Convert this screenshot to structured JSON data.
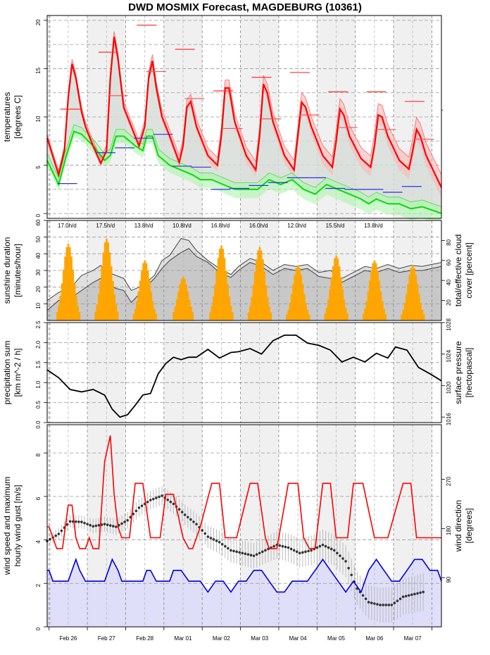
{
  "title": "DWD MOSMIX Forecast, MAGDEBURG (10361)",
  "chart_data": [
    {
      "type": "line",
      "panel": "temperature",
      "ylabel": [
        "temperatures",
        "[degrees C]"
      ],
      "ylim": [
        -0.5,
        20.5
      ],
      "yticks": [
        0,
        5,
        10,
        15,
        20
      ],
      "grid": true,
      "x_range_days": [
        0,
        10.3
      ],
      "x_tick_labels": [
        "Feb 26",
        "Feb 27",
        "Feb 28",
        "Mar 01",
        "Mar 02",
        "Mar 03",
        "Mar 04",
        "Mar 05",
        "Mar 06",
        "Mar 07"
      ],
      "series": [
        {
          "name": "temperature",
          "color": "#ff0000",
          "x": [
            0,
            0.3,
            0.45,
            0.55,
            0.65,
            0.75,
            0.9,
            1.0,
            1.2,
            1.4,
            1.55,
            1.65,
            1.75,
            1.85,
            2.0,
            2.2,
            2.4,
            2.55,
            2.65,
            2.75,
            2.85,
            3.0,
            3.2,
            3.45,
            3.55,
            3.65,
            3.75,
            3.9,
            4.2,
            4.45,
            4.55,
            4.65,
            4.75,
            4.9,
            5.2,
            5.45,
            5.55,
            5.65,
            5.75,
            5.9,
            6.2,
            6.45,
            6.55,
            6.65,
            6.75,
            6.9,
            7.2,
            7.45,
            7.55,
            7.65,
            7.75,
            7.9,
            8.2,
            8.45,
            8.55,
            8.65,
            8.75,
            8.9,
            9.2,
            9.45,
            9.55,
            9.65,
            9.75,
            9.9,
            10.3
          ],
          "values": [
            7.8,
            4.0,
            6.5,
            12,
            15.5,
            14,
            10.5,
            9,
            7,
            5.2,
            6.5,
            14,
            18.3,
            16,
            11,
            9,
            7,
            9,
            14,
            15.8,
            13,
            10,
            8,
            5.3,
            7,
            11,
            11.6,
            9,
            6,
            5,
            8,
            13,
            13,
            9.5,
            6,
            4.5,
            8,
            13.4,
            12.5,
            9.5,
            6,
            4.5,
            8,
            11.5,
            11,
            9,
            6,
            4.8,
            7.5,
            10.8,
            10.2,
            8,
            5.7,
            4.8,
            7,
            10.2,
            10,
            8,
            5.5,
            4.6,
            6.5,
            8.7,
            8,
            6,
            2.7
          ]
        },
        {
          "name": "dewpoint",
          "color": "#00e000",
          "x": [
            0,
            0.3,
            0.5,
            0.7,
            0.9,
            1.2,
            1.5,
            1.65,
            1.8,
            2.0,
            2.3,
            2.5,
            2.6,
            2.75,
            2.9,
            3.2,
            3.5,
            3.8,
            4.0,
            4.3,
            4.6,
            4.9,
            5.2,
            5.5,
            5.8,
            6.1,
            6.4,
            6.7,
            7.0,
            7.3,
            7.6,
            7.9,
            8.2,
            8.4,
            8.6,
            8.9,
            9.2,
            9.5,
            9.8,
            10.3
          ],
          "values": [
            5.5,
            3.0,
            6,
            8.5,
            8.2,
            7,
            5.5,
            6,
            8,
            8,
            7,
            6.5,
            8,
            8,
            6,
            5,
            4.5,
            4,
            3.5,
            3.5,
            3,
            2.5,
            2.5,
            2.5,
            3.5,
            3,
            3.5,
            2.5,
            2,
            3,
            2.5,
            2,
            1.5,
            1,
            1.5,
            1,
            1,
            0.5,
            0.7,
            0
          ]
        }
      ],
      "daily_max": [
        {
          "day": 0,
          "value": 10.8
        },
        {
          "day": 1,
          "value": 16.7
        },
        {
          "day": 2,
          "value": 19.5
        },
        {
          "day": 3,
          "value": 17.0
        },
        {
          "day": 4,
          "value": 12.7
        },
        {
          "day": 5,
          "value": 14.1
        },
        {
          "day": 6,
          "value": 14.6
        },
        {
          "day": 7,
          "value": 12.6
        },
        {
          "day": 8,
          "value": 12.6
        },
        {
          "day": 9,
          "value": 11.6
        },
        {
          "day": 10,
          "value": 10.7
        }
      ],
      "daily_mid": [
        {
          "day": 1.5,
          "value": 12.2
        },
        {
          "day": 2.5,
          "value": 14.7
        },
        {
          "day": 3.5,
          "value": 11.9
        },
        {
          "day": 4.5,
          "value": 8.8
        },
        {
          "day": 5.5,
          "value": 9.8
        },
        {
          "day": 6.5,
          "value": 10.2
        },
        {
          "day": 7.5,
          "value": 8.9
        },
        {
          "day": 8.5,
          "value": 8.7
        },
        {
          "day": 9.5,
          "value": 7.7
        }
      ],
      "daily_min": [
        {
          "day": 0.5,
          "value": 3.1
        },
        {
          "day": 1.5,
          "value": 6.3
        },
        {
          "day": 2.0,
          "value": 6.8
        },
        {
          "day": 2.5,
          "value": 7.8
        },
        {
          "day": 3.0,
          "value": 8.2
        },
        {
          "day": 3.5,
          "value": 4.9
        },
        {
          "day": 4.0,
          "value": 4.8
        },
        {
          "day": 4.5,
          "value": 2.5
        },
        {
          "day": 5.0,
          "value": 2.6
        },
        {
          "day": 5.5,
          "value": 2.9
        },
        {
          "day": 6.0,
          "value": 3.2
        },
        {
          "day": 6.5,
          "value": 3.7
        },
        {
          "day": 7.0,
          "value": 3.7
        },
        {
          "day": 7.5,
          "value": 2.6
        },
        {
          "day": 8.0,
          "value": 2.5
        },
        {
          "day": 8.5,
          "value": 2.5
        },
        {
          "day": 9.0,
          "value": 2.2
        },
        {
          "day": 9.5,
          "value": 2.8
        }
      ]
    },
    {
      "type": "bar",
      "panel": "sunshine",
      "ylabel": [
        "sunshine duration",
        "[minutes/hour]"
      ],
      "ylabel_right": [
        "total/effective cloud",
        "cover [percent]"
      ],
      "ylim": [
        0,
        60
      ],
      "yticks": [
        10,
        20,
        30,
        40,
        50,
        60
      ],
      "yticks_right": [
        20,
        40,
        60,
        80
      ],
      "ylim_right": [
        0,
        100
      ],
      "daily_sunshine_labels": [
        "17.0h/d",
        "17.5h/d",
        "13.8h/d",
        "10.8h/d",
        "16.8h/d",
        "16.0h/d",
        "12.0h/d",
        "15.5h/d",
        "13.8h/d"
      ],
      "daily_sun_peak_min_per_hour": [
        46,
        49,
        36,
        26,
        45,
        44,
        33,
        39,
        36,
        33
      ],
      "cloud_total": {
        "x": [
          0,
          0.3,
          0.6,
          0.9,
          1.2,
          1.4,
          1.6,
          1.8,
          2.0,
          2.2,
          2.5,
          2.8,
          3.0,
          3.2,
          3.5,
          3.7,
          3.9,
          4.2,
          4.5,
          4.8,
          5.0,
          5.3,
          5.6,
          5.9,
          6.2,
          6.5,
          6.8,
          7.1,
          7.4,
          7.7,
          8.0,
          8.3,
          8.6,
          8.9,
          9.2,
          9.5,
          9.8,
          10.3
        ],
        "values": [
          20,
          28,
          32,
          45,
          50,
          55,
          48,
          45,
          42,
          30,
          35,
          45,
          60,
          65,
          82,
          80,
          70,
          60,
          52,
          46,
          54,
          62,
          58,
          50,
          56,
          54,
          56,
          48,
          50,
          42,
          48,
          54,
          52,
          56,
          52,
          55,
          54,
          58
        ]
      },
      "cloud_effective": {
        "x": [
          0,
          0.3,
          0.6,
          0.9,
          1.2,
          1.4,
          1.6,
          1.8,
          2.0,
          2.2,
          2.5,
          2.8,
          3.0,
          3.2,
          3.5,
          3.7,
          3.9,
          4.2,
          4.5,
          4.8,
          5.0,
          5.3,
          5.6,
          5.9,
          6.2,
          6.5,
          6.8,
          7.1,
          7.4,
          7.7,
          8.0,
          8.3,
          8.6,
          8.9,
          9.2,
          9.5,
          9.8,
          10.3
        ],
        "values": [
          10,
          20,
          22,
          30,
          38,
          42,
          36,
          32,
          30,
          18,
          30,
          42,
          52,
          60,
          68,
          72,
          64,
          58,
          48,
          43,
          50,
          58,
          54,
          46,
          52,
          50,
          52,
          44,
          42,
          38,
          44,
          50,
          48,
          52,
          48,
          50,
          50,
          54
        ]
      }
    },
    {
      "type": "line",
      "panel": "pressure",
      "ylabel": [
        "precipitation sum",
        "[km m^-2 / h]"
      ],
      "ylabel_right": [
        "surface pressure",
        "[hectopascal]"
      ],
      "ylim": [
        0,
        2.5
      ],
      "yticks": [
        0.0,
        0.5,
        1.0,
        1.5,
        2.0,
        2.5
      ],
      "ylim_right": [
        1015.3,
        1028
      ],
      "yticks_right": [
        1016,
        1020,
        1024,
        1028
      ],
      "precipitation_values": [],
      "pressure": {
        "x": [
          0,
          0.3,
          0.6,
          0.9,
          1.2,
          1.5,
          1.7,
          1.9,
          2.1,
          2.3,
          2.5,
          2.7,
          2.9,
          3.1,
          3.3,
          3.5,
          3.7,
          3.9,
          4.2,
          4.5,
          4.8,
          5.0,
          5.3,
          5.6,
          5.9,
          6.2,
          6.5,
          6.8,
          7.1,
          7.4,
          7.7,
          8.0,
          8.3,
          8.6,
          8.9,
          9.1,
          9.4,
          9.7,
          10.0,
          10.3
        ],
        "values": [
          1022.0,
          1021.0,
          1019.5,
          1019.2,
          1019.5,
          1018.8,
          1017.0,
          1016.0,
          1016.3,
          1017.5,
          1018.8,
          1019.0,
          1021.5,
          1022.8,
          1023.6,
          1023.3,
          1023.6,
          1023.6,
          1024.6,
          1023.5,
          1024.2,
          1024.3,
          1024.7,
          1024.0,
          1025.7,
          1026.4,
          1026.4,
          1025.4,
          1025.1,
          1024.5,
          1023.0,
          1023.6,
          1023.0,
          1024.1,
          1023.5,
          1024.9,
          1024.5,
          1022.3,
          1021.5,
          1020.6
        ]
      }
    },
    {
      "type": "line",
      "panel": "wind",
      "ylabel": [
        "wind speed and maximum",
        "hourly wind gust [m/s]"
      ],
      "ylabel_right": [
        "wind direction",
        "[degrees]"
      ],
      "ylim": [
        0,
        9.3
      ],
      "yticks": [
        0,
        2,
        4,
        6,
        8
      ],
      "ylim_right": [
        0,
        370
      ],
      "yticks_right": [
        90,
        180,
        270
      ],
      "gust": {
        "x": [
          0,
          0.05,
          0.25,
          0.4,
          0.55,
          0.65,
          0.75,
          0.85,
          1.0,
          1.1,
          1.2,
          1.35,
          1.5,
          1.65,
          1.75,
          1.85,
          1.95,
          2.05,
          2.15,
          2.3,
          2.5,
          2.7,
          2.85,
          2.95,
          3.1,
          3.3,
          3.55,
          3.7,
          3.8,
          4.0,
          4.3,
          4.5,
          4.65,
          4.75,
          4.95,
          5.3,
          5.5,
          5.7,
          5.8,
          6.0,
          6.3,
          6.55,
          6.7,
          6.85,
          7.0,
          7.2,
          7.4,
          7.55,
          7.7,
          7.85,
          8.0,
          8.25,
          8.55,
          8.65,
          8.9,
          9.3,
          9.5,
          9.65,
          9.85,
          10.3
        ],
        "values": [
          4.6,
          4.6,
          3.6,
          3.6,
          5.6,
          5.6,
          4.1,
          3.6,
          3.6,
          4.1,
          3.6,
          3.6,
          7.6,
          8.8,
          6.1,
          4.6,
          4.1,
          4.1,
          4.1,
          6.6,
          6.6,
          4.1,
          4.1,
          4.1,
          6.1,
          6.1,
          4.1,
          3.6,
          3.6,
          4.6,
          6.6,
          6.6,
          4.1,
          4.1,
          4.1,
          6.6,
          6.6,
          4.1,
          3.6,
          3.6,
          6.6,
          6.6,
          4.1,
          3.6,
          3.6,
          6.6,
          6.6,
          4.1,
          4.1,
          4.1,
          6.6,
          6.6,
          4.1,
          4.1,
          4.1,
          6.6,
          6.6,
          4.1,
          4.1,
          4.1
        ]
      },
      "mean_wind": {
        "x": [
          0,
          0.05,
          0.15,
          0.55,
          0.65,
          0.75,
          0.85,
          1.0,
          1.5,
          1.6,
          1.7,
          1.85,
          1.95,
          2.1,
          2.5,
          2.6,
          2.7,
          2.85,
          3.2,
          3.3,
          3.5,
          3.7,
          4.0,
          4.2,
          4.4,
          4.6,
          4.8,
          5.0,
          5.2,
          5.4,
          5.6,
          5.8,
          6.0,
          6.2,
          6.4,
          6.6,
          6.8,
          7.0,
          7.2,
          7.4,
          7.6,
          7.8,
          8.0,
          8.2,
          8.4,
          8.6,
          8.8,
          9.0,
          9.2,
          9.4,
          9.6,
          9.8,
          10.0,
          10.2,
          10.3
        ],
        "values": [
          2.6,
          2.6,
          2.1,
          2.1,
          2.6,
          3.1,
          2.6,
          2.1,
          2.1,
          2.6,
          3.1,
          2.6,
          2.1,
          2.1,
          2.1,
          2.6,
          2.6,
          2.1,
          2.1,
          2.6,
          2.6,
          2.1,
          2.1,
          1.6,
          2.1,
          2.1,
          1.6,
          2.1,
          2.1,
          2.6,
          2.6,
          2.1,
          1.6,
          1.6,
          2.1,
          2.1,
          2.1,
          2.6,
          3.1,
          2.6,
          2.1,
          1.6,
          2.1,
          1.6,
          2.6,
          3.1,
          2.6,
          2.1,
          2.1,
          2.6,
          3.1,
          3.1,
          2.6,
          2.6,
          2.1
        ]
      },
      "wind_direction_deg": {
        "x": [
          0,
          0.3,
          0.6,
          0.9,
          1.2,
          1.5,
          1.8,
          2.1,
          2.4,
          2.7,
          3.0,
          3.3,
          3.6,
          3.9,
          4.2,
          4.5,
          4.8,
          5.1,
          5.4,
          5.7,
          6.0,
          6.3,
          6.6,
          6.9,
          7.2,
          7.5,
          7.8,
          8.1,
          8.4,
          8.7,
          9.0,
          9.3,
          9.6,
          9.9
        ],
        "values": [
          157,
          170,
          193,
          192,
          184,
          188,
          183,
          195,
          218,
          232,
          240,
          225,
          205,
          188,
          165,
          155,
          140,
          135,
          130,
          140,
          150,
          145,
          135,
          140,
          150,
          140,
          120,
          70,
          45,
          40,
          40,
          55,
          60,
          65
        ]
      }
    }
  ]
}
